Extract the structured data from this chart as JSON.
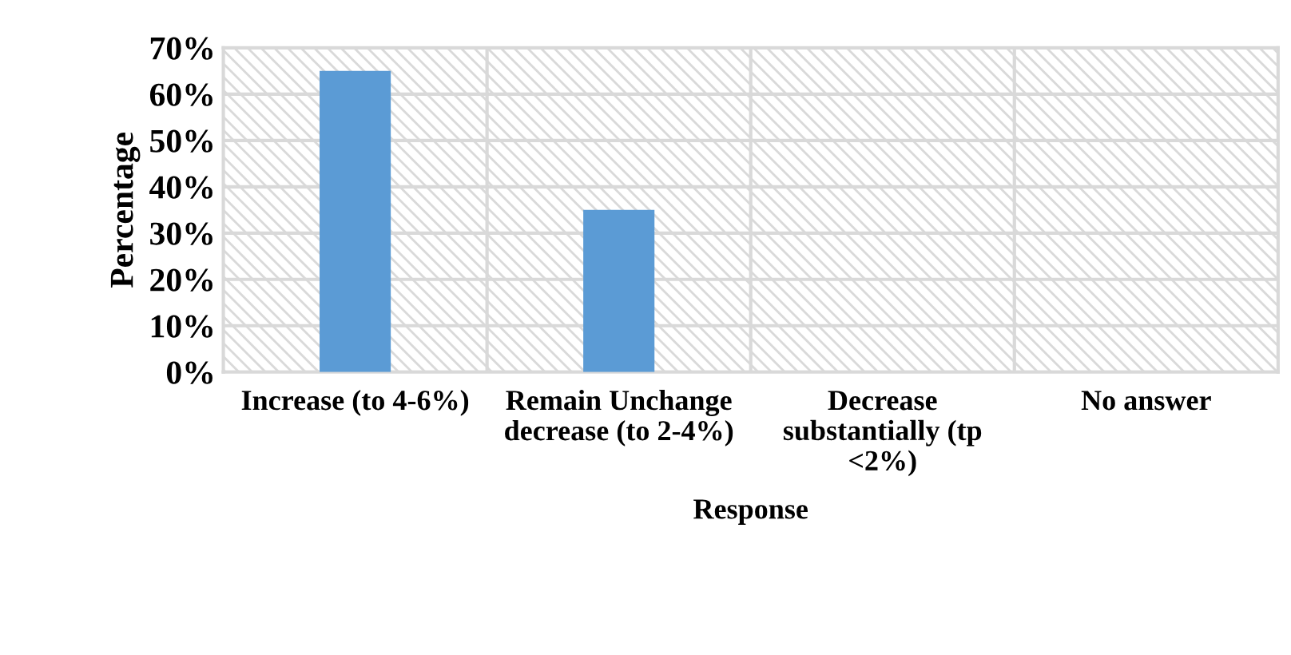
{
  "chart_data": {
    "type": "bar",
    "xlabel": "Response",
    "ylabel": "Percentage",
    "categories": [
      "Increase (to 4-6%)",
      "Remain Unchange decrease (to 2-4%)",
      "Decrease substantially (tp <2%)",
      "No answer"
    ],
    "values": [
      65,
      35,
      0,
      0
    ],
    "color": "#5b9bd5",
    "ylim": [
      0,
      70
    ],
    "yticks": [
      {
        "value": 0,
        "label": "0%"
      },
      {
        "value": 10,
        "label": "10%"
      },
      {
        "value": 20,
        "label": "20%"
      },
      {
        "value": 30,
        "label": "30%"
      },
      {
        "value": 40,
        "label": "40%"
      },
      {
        "value": 50,
        "label": "50%"
      },
      {
        "value": 60,
        "label": "60%"
      },
      {
        "value": 70,
        "label": "70%"
      }
    ],
    "grid": true,
    "legend": false
  }
}
